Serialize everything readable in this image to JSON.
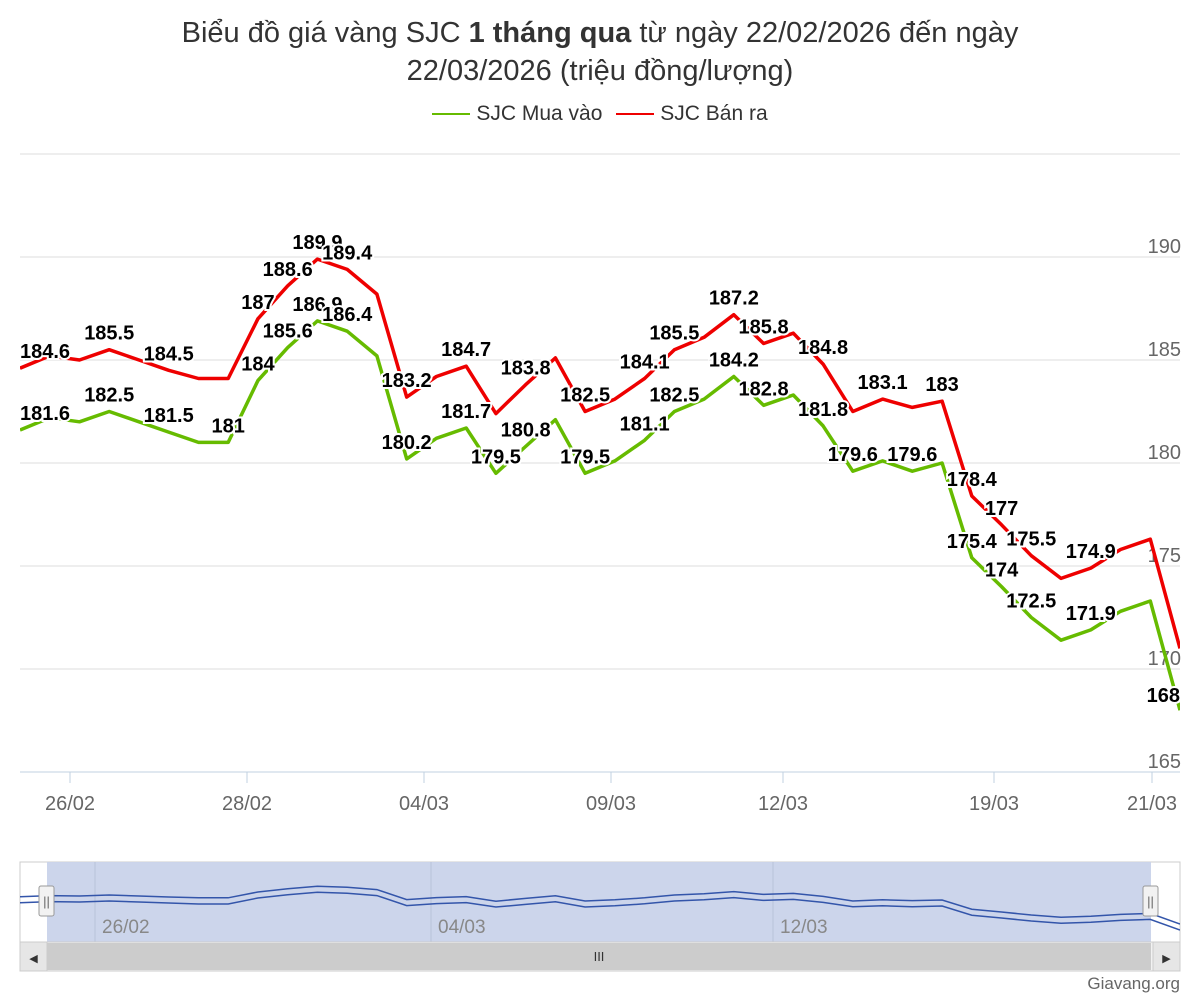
{
  "title": {
    "part1": "Biểu đồ giá vàng SJC ",
    "bold": "1 tháng qua",
    "part2": " từ ngày 22/02/2026 đến ngày",
    "line2": "22/03/2026 (triệu đồng/lượng)"
  },
  "legend": {
    "buy": "SJC Mua vào",
    "sell": "SJC Bán ra"
  },
  "colors": {
    "buy": "#66bb00",
    "sell": "#ee0000",
    "grid": "#dddddd",
    "navigator_fill": "#c9d3ea",
    "navigator_line": "#3355aa"
  },
  "navigator": {
    "labels": [
      "26/02",
      "04/03",
      "12/03"
    ],
    "scroll_grip": "III",
    "left_arrow": "◀",
    "right_arrow": "▶",
    "handle_grip": "||"
  },
  "credit": "Giavang.org",
  "chart_data": {
    "type": "line",
    "title": "Biểu đồ giá vàng SJC 1 tháng qua từ ngày 22/02/2026 đến ngày 22/03/2026 (triệu đồng/lượng)",
    "xlabel": "",
    "ylabel": "",
    "ylim": [
      165,
      195
    ],
    "yticks": [
      165,
      170,
      175,
      180,
      185,
      190
    ],
    "xticks": [
      "26/02",
      "28/02",
      "04/03",
      "09/03",
      "12/03",
      "19/03",
      "21/03"
    ],
    "legend": "top-center",
    "grid": true,
    "series": [
      {
        "name": "SJC Bán ra",
        "key": "sell",
        "values": [
          184.6,
          185.2,
          185,
          185.5,
          185,
          184.5,
          184.1,
          184.1,
          187,
          188.6,
          189.9,
          189.4,
          188.2,
          183.2,
          184.2,
          184.7,
          182.4,
          183.8,
          185.1,
          182.5,
          183.1,
          184.1,
          185.5,
          186.1,
          187.2,
          185.8,
          186.3,
          184.8,
          182.5,
          183.1,
          182.7,
          183,
          178.4,
          177,
          175.5,
          174.4,
          174.9,
          175.8,
          176.3,
          171
        ],
        "labels": [
          "184.6",
          "",
          "",
          "185.5",
          "",
          "184.5",
          "",
          "",
          "187",
          "188.6",
          "189.9",
          "189.4",
          "",
          "183.2",
          "",
          "184.7",
          "",
          "183.8",
          "",
          "182.5",
          "",
          "184.1",
          "185.5",
          "",
          "187.2",
          "185.8",
          "",
          "184.8",
          "",
          "183.1",
          "",
          "183",
          "178.4",
          "177",
          "175.5",
          "",
          "174.9",
          "",
          "",
          ""
        ]
      },
      {
        "name": "SJC Mua vào",
        "key": "buy",
        "values": [
          181.6,
          182.2,
          182,
          182.5,
          182,
          181.5,
          181,
          181,
          184,
          185.6,
          186.9,
          186.4,
          185.2,
          180.2,
          181.2,
          181.7,
          179.5,
          180.8,
          182.1,
          179.5,
          180.1,
          181.1,
          182.5,
          183.1,
          184.2,
          182.8,
          183.3,
          181.8,
          179.6,
          180.1,
          179.6,
          180,
          175.4,
          174,
          172.5,
          171.4,
          171.9,
          172.8,
          173.3,
          168
        ],
        "labels": [
          "181.6",
          "",
          "",
          "182.5",
          "",
          "181.5",
          "",
          "181",
          "184",
          "185.6",
          "186.9",
          "186.4",
          "",
          "180.2",
          "",
          "181.7",
          "179.5",
          "180.8",
          "",
          "179.5",
          "",
          "181.1",
          "182.5",
          "",
          "184.2",
          "182.8",
          "",
          "181.8",
          "179.6",
          "",
          "179.6",
          "",
          "175.4",
          "174",
          "172.5",
          "",
          "171.9",
          "",
          "",
          "168"
        ]
      }
    ]
  }
}
